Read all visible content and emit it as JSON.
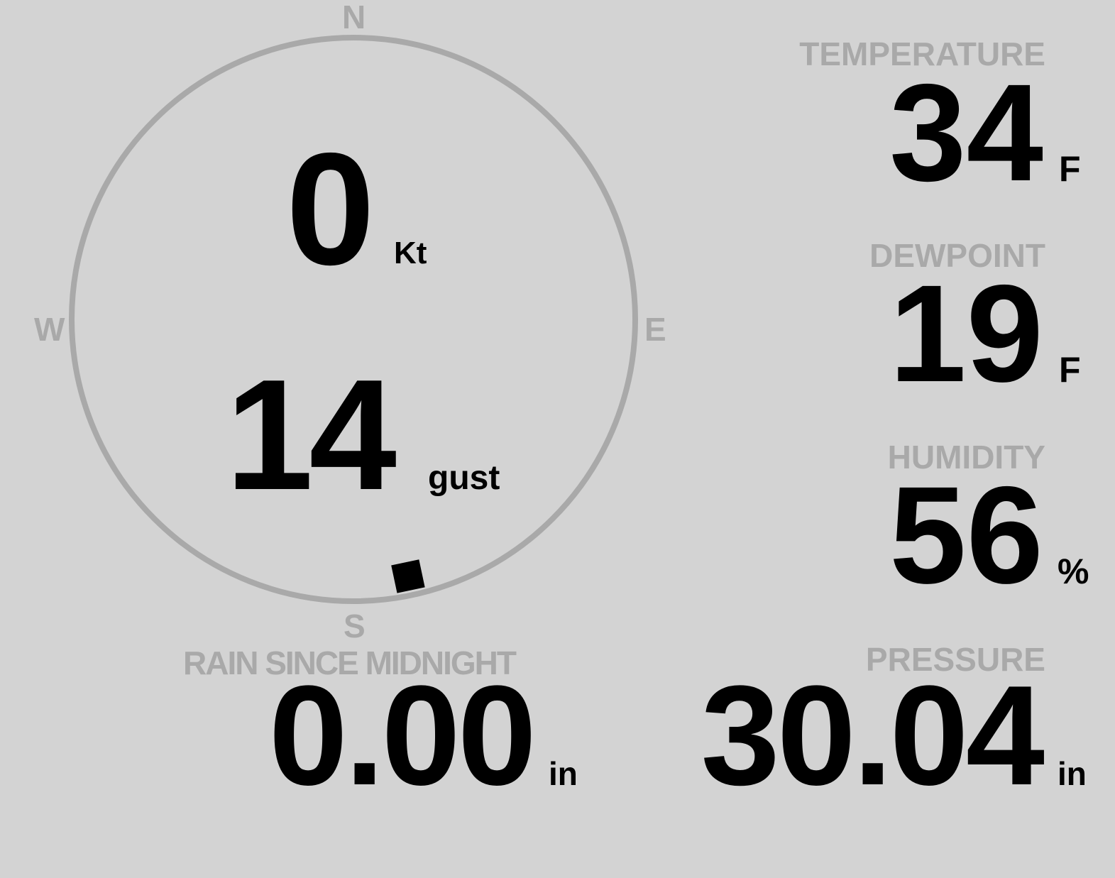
{
  "colors": {
    "background": "#d3d3d3",
    "label": "#a9a9a9",
    "value": "#000000",
    "compass_ring": "#a9a9a9"
  },
  "wind": {
    "compass": {
      "north": "N",
      "south": "S",
      "east": "E",
      "west": "W"
    },
    "direction_deg": 168,
    "speed": "0",
    "speed_unit": "Kt",
    "gust": "14",
    "gust_unit": "gust"
  },
  "temperature": {
    "label": "TEMPERATURE",
    "value": "34",
    "unit": "F"
  },
  "dewpoint": {
    "label": "DEWPOINT",
    "value": "19",
    "unit": "F"
  },
  "humidity": {
    "label": "HUMIDITY",
    "value": "56",
    "unit": "%"
  },
  "rain": {
    "label": "RAIN SINCE MIDNIGHT",
    "value": "0.00",
    "unit": "in"
  },
  "pressure": {
    "label": "PRESSURE",
    "value": "30.04",
    "unit": "in"
  }
}
